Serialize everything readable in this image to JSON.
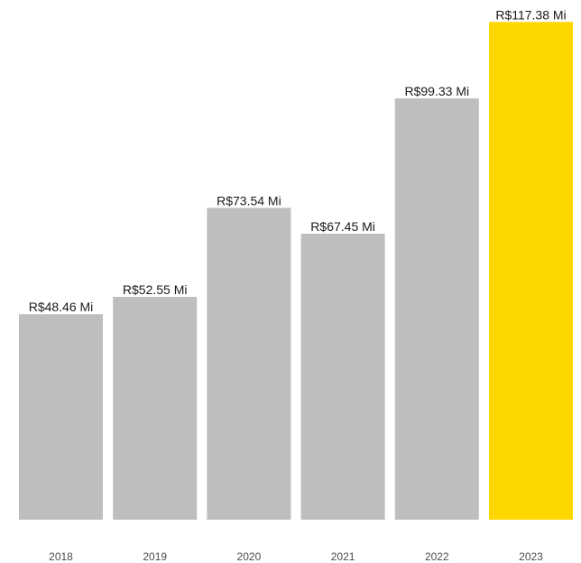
{
  "chart_data": {
    "type": "bar",
    "categories": [
      "2018",
      "2019",
      "2020",
      "2021",
      "2022",
      "2023"
    ],
    "values": [
      48.46,
      52.55,
      73.54,
      67.45,
      99.33,
      117.38
    ],
    "data_labels": [
      "R$48.46 Mi",
      "R$52.55 Mi",
      "R$73.54 Mi",
      "R$67.45 Mi",
      "R$99.33 Mi",
      "R$117.38 Mi"
    ],
    "title": "",
    "xlabel": "",
    "ylabel": "",
    "ylim": [
      0,
      120
    ],
    "grid": false,
    "legend": "none",
    "colors": {
      "default_bar": "#bebebe",
      "highlight_bar": "#ffd700",
      "highlight_index": 5
    }
  }
}
